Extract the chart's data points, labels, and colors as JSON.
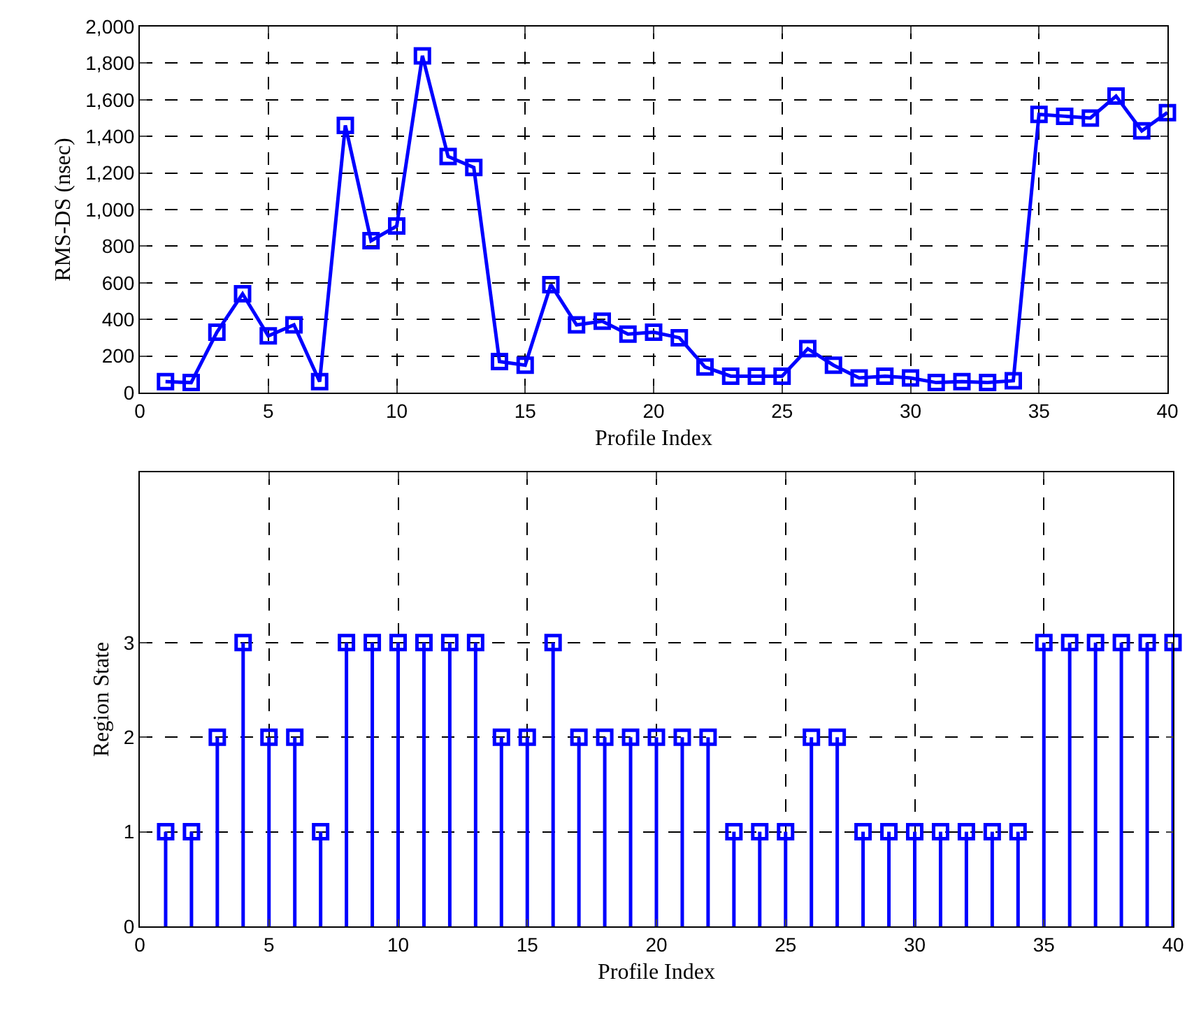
{
  "chart_data": [
    {
      "type": "line",
      "xlabel": "Profile Index",
      "ylabel": "RMS-DS (nsec)",
      "x": [
        1,
        2,
        3,
        4,
        5,
        6,
        7,
        8,
        9,
        10,
        11,
        12,
        13,
        14,
        15,
        16,
        17,
        18,
        19,
        20,
        21,
        22,
        23,
        24,
        25,
        26,
        27,
        28,
        29,
        30,
        31,
        32,
        33,
        34,
        35,
        36,
        37,
        38,
        39,
        40
      ],
      "series": [
        {
          "color": "#0000ff",
          "values": [
            60,
            55,
            330,
            540,
            310,
            370,
            60,
            1460,
            830,
            910,
            1840,
            1290,
            1230,
            170,
            150,
            590,
            370,
            390,
            320,
            330,
            300,
            140,
            90,
            90,
            90,
            240,
            150,
            80,
            90,
            80,
            55,
            60,
            55,
            65,
            1520,
            1510,
            1500,
            1620,
            1430,
            1530
          ]
        }
      ],
      "xlim": [
        0,
        40
      ],
      "xticks": [
        0,
        5,
        10,
        15,
        20,
        25,
        30,
        35,
        40
      ],
      "ylim": [
        0,
        2000
      ],
      "yticks": [
        0,
        200,
        400,
        600,
        800,
        {
          "value": 1000,
          "label": "1,000"
        },
        {
          "value": 1200,
          "label": "1,200"
        },
        {
          "value": 1400,
          "label": "1,400"
        },
        {
          "value": 1600,
          "label": "1,600"
        },
        {
          "value": 1800,
          "label": "1,800"
        },
        {
          "value": 2000,
          "label": "2,000"
        }
      ],
      "grid": true,
      "marker": "square",
      "line_style": "solid"
    },
    {
      "type": "lollipop",
      "xlabel": "Profile Index",
      "ylabel": "Region State",
      "x": [
        1,
        2,
        3,
        4,
        5,
        6,
        7,
        8,
        9,
        10,
        11,
        12,
        13,
        14,
        15,
        16,
        17,
        18,
        19,
        20,
        21,
        22,
        23,
        24,
        25,
        26,
        27,
        28,
        29,
        30,
        31,
        32,
        33,
        34,
        35,
        36,
        37,
        38,
        39,
        40
      ],
      "series": [
        {
          "color": "#0000ff",
          "values": [
            1,
            1,
            2,
            3,
            2,
            2,
            1,
            3,
            3,
            3,
            3,
            3,
            3,
            2,
            2,
            3,
            2,
            2,
            2,
            2,
            2,
            2,
            1,
            1,
            1,
            2,
            2,
            1,
            1,
            1,
            1,
            1,
            1,
            1,
            3,
            3,
            3,
            3,
            3,
            3
          ]
        }
      ],
      "xlim": [
        0,
        40
      ],
      "xticks": [
        0,
        5,
        10,
        15,
        20,
        25,
        30,
        35,
        40
      ],
      "ylim": [
        0,
        4.8
      ],
      "yticks": [
        0,
        1,
        2,
        3
      ],
      "grid": true,
      "marker": "square",
      "line_style": "solid"
    }
  ]
}
